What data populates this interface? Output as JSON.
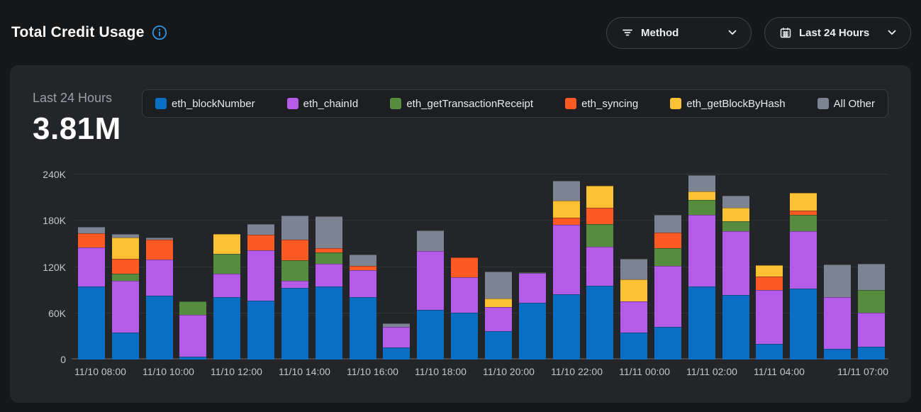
{
  "header": {
    "title": "Total Credit Usage"
  },
  "filters": {
    "method": {
      "label": "Method",
      "icon": "filter-icon"
    },
    "time_range": {
      "label": "Last 24 Hours",
      "icon": "calendar-icon"
    }
  },
  "summary": {
    "period": "Last 24 Hours",
    "total": "3.81M"
  },
  "colors": {
    "page_bg": "#161718",
    "card_bg": "#232528",
    "accent_blue": "#2b9df4",
    "grid": "#303338",
    "axis_text": "#c3c6cb"
  },
  "chart_data": {
    "type": "bar",
    "stacked": true,
    "title": "Total Credit Usage - Last 24 Hours",
    "value_unit": "thousands of credits",
    "ylim": [
      0,
      240
    ],
    "grid": true,
    "legend_position": "top",
    "yticks": [
      {
        "value": 0,
        "label": "0"
      },
      {
        "value": 60,
        "label": "60K"
      },
      {
        "value": 120,
        "label": "120K"
      },
      {
        "value": 180,
        "label": "180K"
      },
      {
        "value": 240,
        "label": "240K"
      }
    ],
    "categories": [
      "11/10 08:00",
      "11/10 09:00",
      "11/10 10:00",
      "11/10 11:00",
      "11/10 12:00",
      "11/10 13:00",
      "11/10 14:00",
      "11/10 15:00",
      "11/10 16:00",
      "11/10 17:00",
      "11/10 18:00",
      "11/10 19:00",
      "11/10 20:00",
      "11/10 21:00",
      "11/10 22:00",
      "11/10 23:00",
      "11/11 00:00",
      "11/11 01:00",
      "11/11 02:00",
      "11/11 03:00",
      "11/11 04:00",
      "11/11 05:00",
      "11/11 06:00",
      "11/11 07:00"
    ],
    "xtick_labels": [
      {
        "index": 0,
        "label": "11/10 08:00"
      },
      {
        "index": 2,
        "label": "11/10 10:00"
      },
      {
        "index": 4,
        "label": "11/10 12:00"
      },
      {
        "index": 6,
        "label": "11/10 14:00"
      },
      {
        "index": 8,
        "label": "11/10 16:00"
      },
      {
        "index": 10,
        "label": "11/10 18:00"
      },
      {
        "index": 12,
        "label": "11/10 20:00"
      },
      {
        "index": 14,
        "label": "11/10 22:00"
      },
      {
        "index": 16,
        "label": "11/11 00:00"
      },
      {
        "index": 18,
        "label": "11/11 02:00"
      },
      {
        "index": 20,
        "label": "11/11 04:00"
      },
      {
        "index": 23,
        "label": "11/11 07:00"
      }
    ],
    "series": [
      {
        "name": "eth_blockNumber",
        "color": "#0a6ec4",
        "values": [
          95,
          35,
          83,
          4,
          81,
          76,
          93,
          95,
          81,
          16,
          64,
          61,
          37,
          74,
          85,
          96,
          35,
          42,
          95,
          84,
          20,
          92,
          14,
          17
        ]
      },
      {
        "name": "eth_chainId",
        "color": "#b45ce9",
        "values": [
          50,
          67,
          47,
          54,
          30,
          66,
          9,
          29,
          35,
          26,
          77,
          46,
          31,
          38,
          90,
          50,
          40,
          79,
          93,
          82,
          70,
          74,
          67,
          44
        ]
      },
      {
        "name": "eth_getTransactionReceipt",
        "color": "#558c3e",
        "values": [
          0,
          9,
          0,
          17,
          26,
          0,
          27,
          15,
          0,
          0,
          0,
          0,
          0,
          1,
          0,
          30,
          0,
          23,
          19,
          13,
          0,
          22,
          0,
          29
        ]
      },
      {
        "name": "eth_syncing",
        "color": "#fc5a22",
        "values": [
          19,
          20,
          25,
          0,
          0,
          20,
          26,
          5,
          5,
          0,
          0,
          25,
          0,
          0,
          9,
          21,
          0,
          21,
          0,
          0,
          18,
          5,
          0,
          0
        ]
      },
      {
        "name": "eth_getBlockByHash",
        "color": "#fdc233",
        "values": [
          0,
          27,
          0,
          0,
          26,
          0,
          0,
          0,
          0,
          0,
          0,
          0,
          11,
          0,
          22,
          28,
          29,
          0,
          11,
          18,
          14,
          23,
          0,
          0
        ]
      },
      {
        "name": "All Other",
        "color": "#7c8494",
        "values": [
          8,
          5,
          3,
          0,
          0,
          14,
          32,
          42,
          15,
          5,
          26,
          0,
          35,
          0,
          26,
          0,
          27,
          23,
          21,
          15,
          0,
          0,
          42,
          34
        ]
      }
    ]
  }
}
